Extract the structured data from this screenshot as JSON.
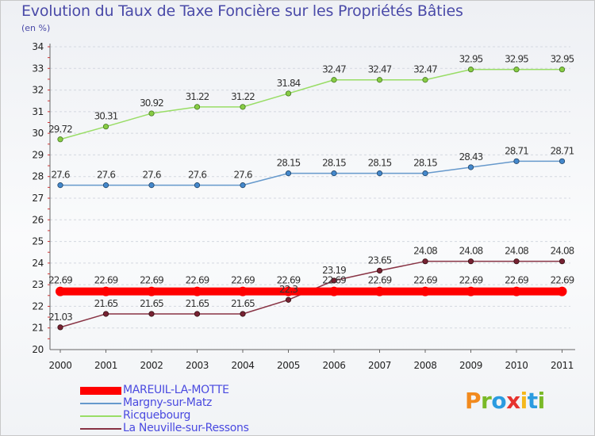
{
  "header": {
    "title": "Evolution du Taux de Taxe Foncière sur les Propriétés Bâties",
    "unit": "(en %)"
  },
  "logo": {
    "text": "Proxiti",
    "letters": [
      {
        "ch": "P",
        "color": "#f28a1e"
      },
      {
        "ch": "r",
        "color": "#7ab928"
      },
      {
        "ch": "o",
        "color": "#2b9be0"
      },
      {
        "ch": "x",
        "color": "#e6322e"
      },
      {
        "ch": "i",
        "color": "#f5b81c"
      },
      {
        "ch": "t",
        "color": "#2b9be0"
      },
      {
        "ch": "i",
        "color": "#7ab928"
      }
    ]
  },
  "chart_data": {
    "type": "line",
    "title": "Evolution du Taux de Taxe Foncière sur les Propriétés Bâties",
    "ylabel": "(en %)",
    "xlabel": "",
    "ylim": [
      20,
      34
    ],
    "yticks": [
      "20",
      "21",
      "22",
      "23",
      "24",
      "25",
      "26",
      "27",
      "28",
      "29",
      "30",
      "31",
      "32",
      "33",
      "34"
    ],
    "x": [
      "2000",
      "2001",
      "2002",
      "2003",
      "2004",
      "2005",
      "2006",
      "2007",
      "2008",
      "2009",
      "2010",
      "2011"
    ],
    "grid": "horizontal",
    "legend_position": "bottom-left",
    "series": [
      {
        "name": "MAREUIL-LA-MOTTE",
        "color": "#ff0000",
        "values": [
          22.69,
          22.69,
          22.69,
          22.69,
          22.69,
          22.69,
          22.69,
          22.69,
          22.69,
          22.69,
          22.69,
          22.69
        ],
        "labels": [
          "22.69",
          "22.69",
          "22.69",
          "22.69",
          "22.69",
          "22.69",
          "22.69",
          "22.69",
          "22.69",
          "22.69",
          "22.69",
          "22.69"
        ]
      },
      {
        "name": "Margny-sur-Matz",
        "color": "#6699cc",
        "values": [
          27.6,
          27.6,
          27.6,
          27.6,
          27.6,
          28.15,
          28.15,
          28.15,
          28.15,
          28.43,
          28.71,
          28.71
        ],
        "labels": [
          "27.6",
          "27.6",
          "27.6",
          "27.6",
          "27.6",
          "28.15",
          "28.15",
          "28.15",
          "28.15",
          "28.43",
          "28.71",
          "28.71"
        ]
      },
      {
        "name": "Ricquebourg",
        "color": "#99dd66",
        "values": [
          29.72,
          30.31,
          30.92,
          31.22,
          31.22,
          31.84,
          32.47,
          32.47,
          32.47,
          32.95,
          32.95,
          32.95
        ],
        "labels": [
          "29.72",
          "30.31",
          "30.92",
          "31.22",
          "31.22",
          "31.84",
          "32.47",
          "32.47",
          "32.47",
          "32.95",
          "32.95",
          "32.95"
        ]
      },
      {
        "name": "La Neuville-sur-Ressons",
        "color": "#883344",
        "values": [
          21.03,
          21.65,
          21.65,
          21.65,
          21.65,
          22.3,
          23.19,
          23.65,
          24.08,
          24.08,
          24.08,
          24.08
        ],
        "labels": [
          "21.03",
          "21.65",
          "21.65",
          "21.65",
          "21.65",
          "22.3",
          "23.19",
          "23.65",
          "24.08",
          "24.08",
          "24.08",
          "24.08"
        ]
      }
    ]
  }
}
